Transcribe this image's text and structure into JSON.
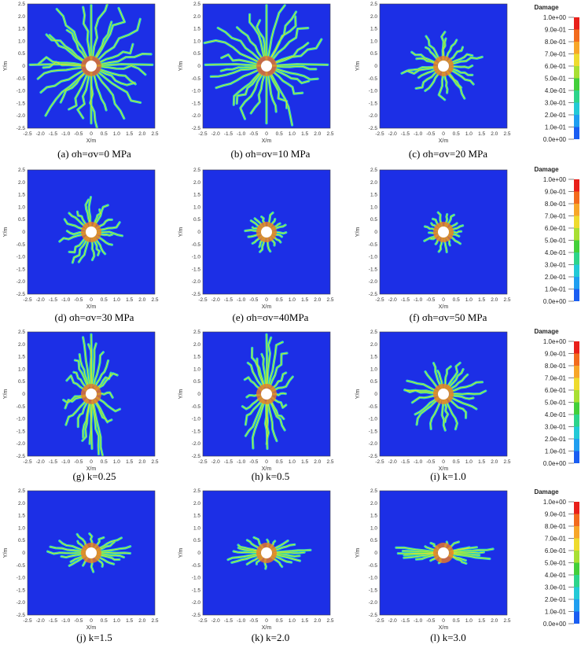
{
  "figure": {
    "panels": [
      {
        "id": "a",
        "caption": "(a) σh=σv=0 MPa",
        "caption_parts": [
          "(a) ",
          "σ",
          "h",
          "=",
          "σ",
          "v",
          "=0 MPa"
        ],
        "pattern": "cross-wide"
      },
      {
        "id": "b",
        "caption": "(b) σh=σv=10 MPa",
        "caption_parts": [
          "(b) ",
          "σ",
          "h",
          "=",
          "σ",
          "v",
          "=10 MPa"
        ],
        "pattern": "cross-wide"
      },
      {
        "id": "c",
        "caption": "(c) σh=σv=20 MPa",
        "caption_parts": [
          "(c) ",
          "σ",
          "h",
          "=",
          "σ",
          "v",
          "=20 MPa"
        ],
        "pattern": "radial-medium"
      },
      {
        "id": "d",
        "caption": "(d) σh=σv=30 MPa",
        "caption_parts": [
          "(d) ",
          "σ",
          "h=",
          "σ",
          "v=30 MPa"
        ],
        "pattern": "radial-small"
      },
      {
        "id": "e",
        "caption": "(e) σh=σv=40MPa",
        "caption_parts": [
          "(e) ",
          "σ",
          "h=",
          "σ",
          "v=40MPa"
        ],
        "pattern": "radial-tiny"
      },
      {
        "id": "f",
        "caption": "(f) σh=σv=50 MPa",
        "caption_parts": [
          "(f) ",
          "σ",
          "h=",
          "σ",
          "v=50 MPa"
        ],
        "pattern": "radial-tiny"
      },
      {
        "id": "g",
        "caption": "(g) k=0.25",
        "pattern": "vertical-long"
      },
      {
        "id": "h",
        "caption": "(h) k=0.5",
        "pattern": "vertical-medium"
      },
      {
        "id": "i",
        "caption": "(i) k=1.0",
        "pattern": "radial-medium"
      },
      {
        "id": "j",
        "caption": "(j) k=1.5",
        "pattern": "horizontal-small"
      },
      {
        "id": "k",
        "caption": "(k) k=2.0",
        "pattern": "horizontal-medium"
      },
      {
        "id": "l",
        "caption": "(l) k=3.0",
        "pattern": "horizontal-long"
      }
    ],
    "axes": {
      "xlabel": "X/m",
      "ylabel": "Y/m",
      "xticks": [
        "-2.5",
        "-2.0",
        "-1.5",
        "-1.0",
        "-0.5",
        "0",
        "0.5",
        "1.0",
        "1.5",
        "2.0",
        "2.5"
      ],
      "yticks": [
        "2.5",
        "2.0",
        "1.5",
        "1.0",
        "0.5",
        "0",
        "-0.5",
        "-1.0",
        "-1.5",
        "-2.0",
        "-2.5"
      ],
      "xlim": [
        -2.5,
        2.5
      ],
      "ylim": [
        -2.5,
        2.5
      ]
    },
    "legend": {
      "title": "Damage",
      "labels": [
        "1.0e+00",
        "9.0e-01",
        "8.0e-01",
        "7.0e-01",
        "6.0e-01",
        "5.0e-01",
        "4.0e-01",
        "3.0e-01",
        "2.0e-01",
        "1.0e-01",
        "0.0e+00"
      ],
      "colors": [
        "#e8201a",
        "#f26b1d",
        "#f7a628",
        "#eedb2e",
        "#a8df33",
        "#43cf3a",
        "#2dd48b",
        "#23c9d6",
        "#1f9ef0",
        "#1a5ef2",
        "#1222d8"
      ]
    },
    "colors": {
      "background": "#1c2fe6",
      "crack_core": "#f0e230",
      "crack_mid": "#48e86a",
      "crack_outer": "#27c9e8",
      "hole": "#ffffff"
    }
  }
}
